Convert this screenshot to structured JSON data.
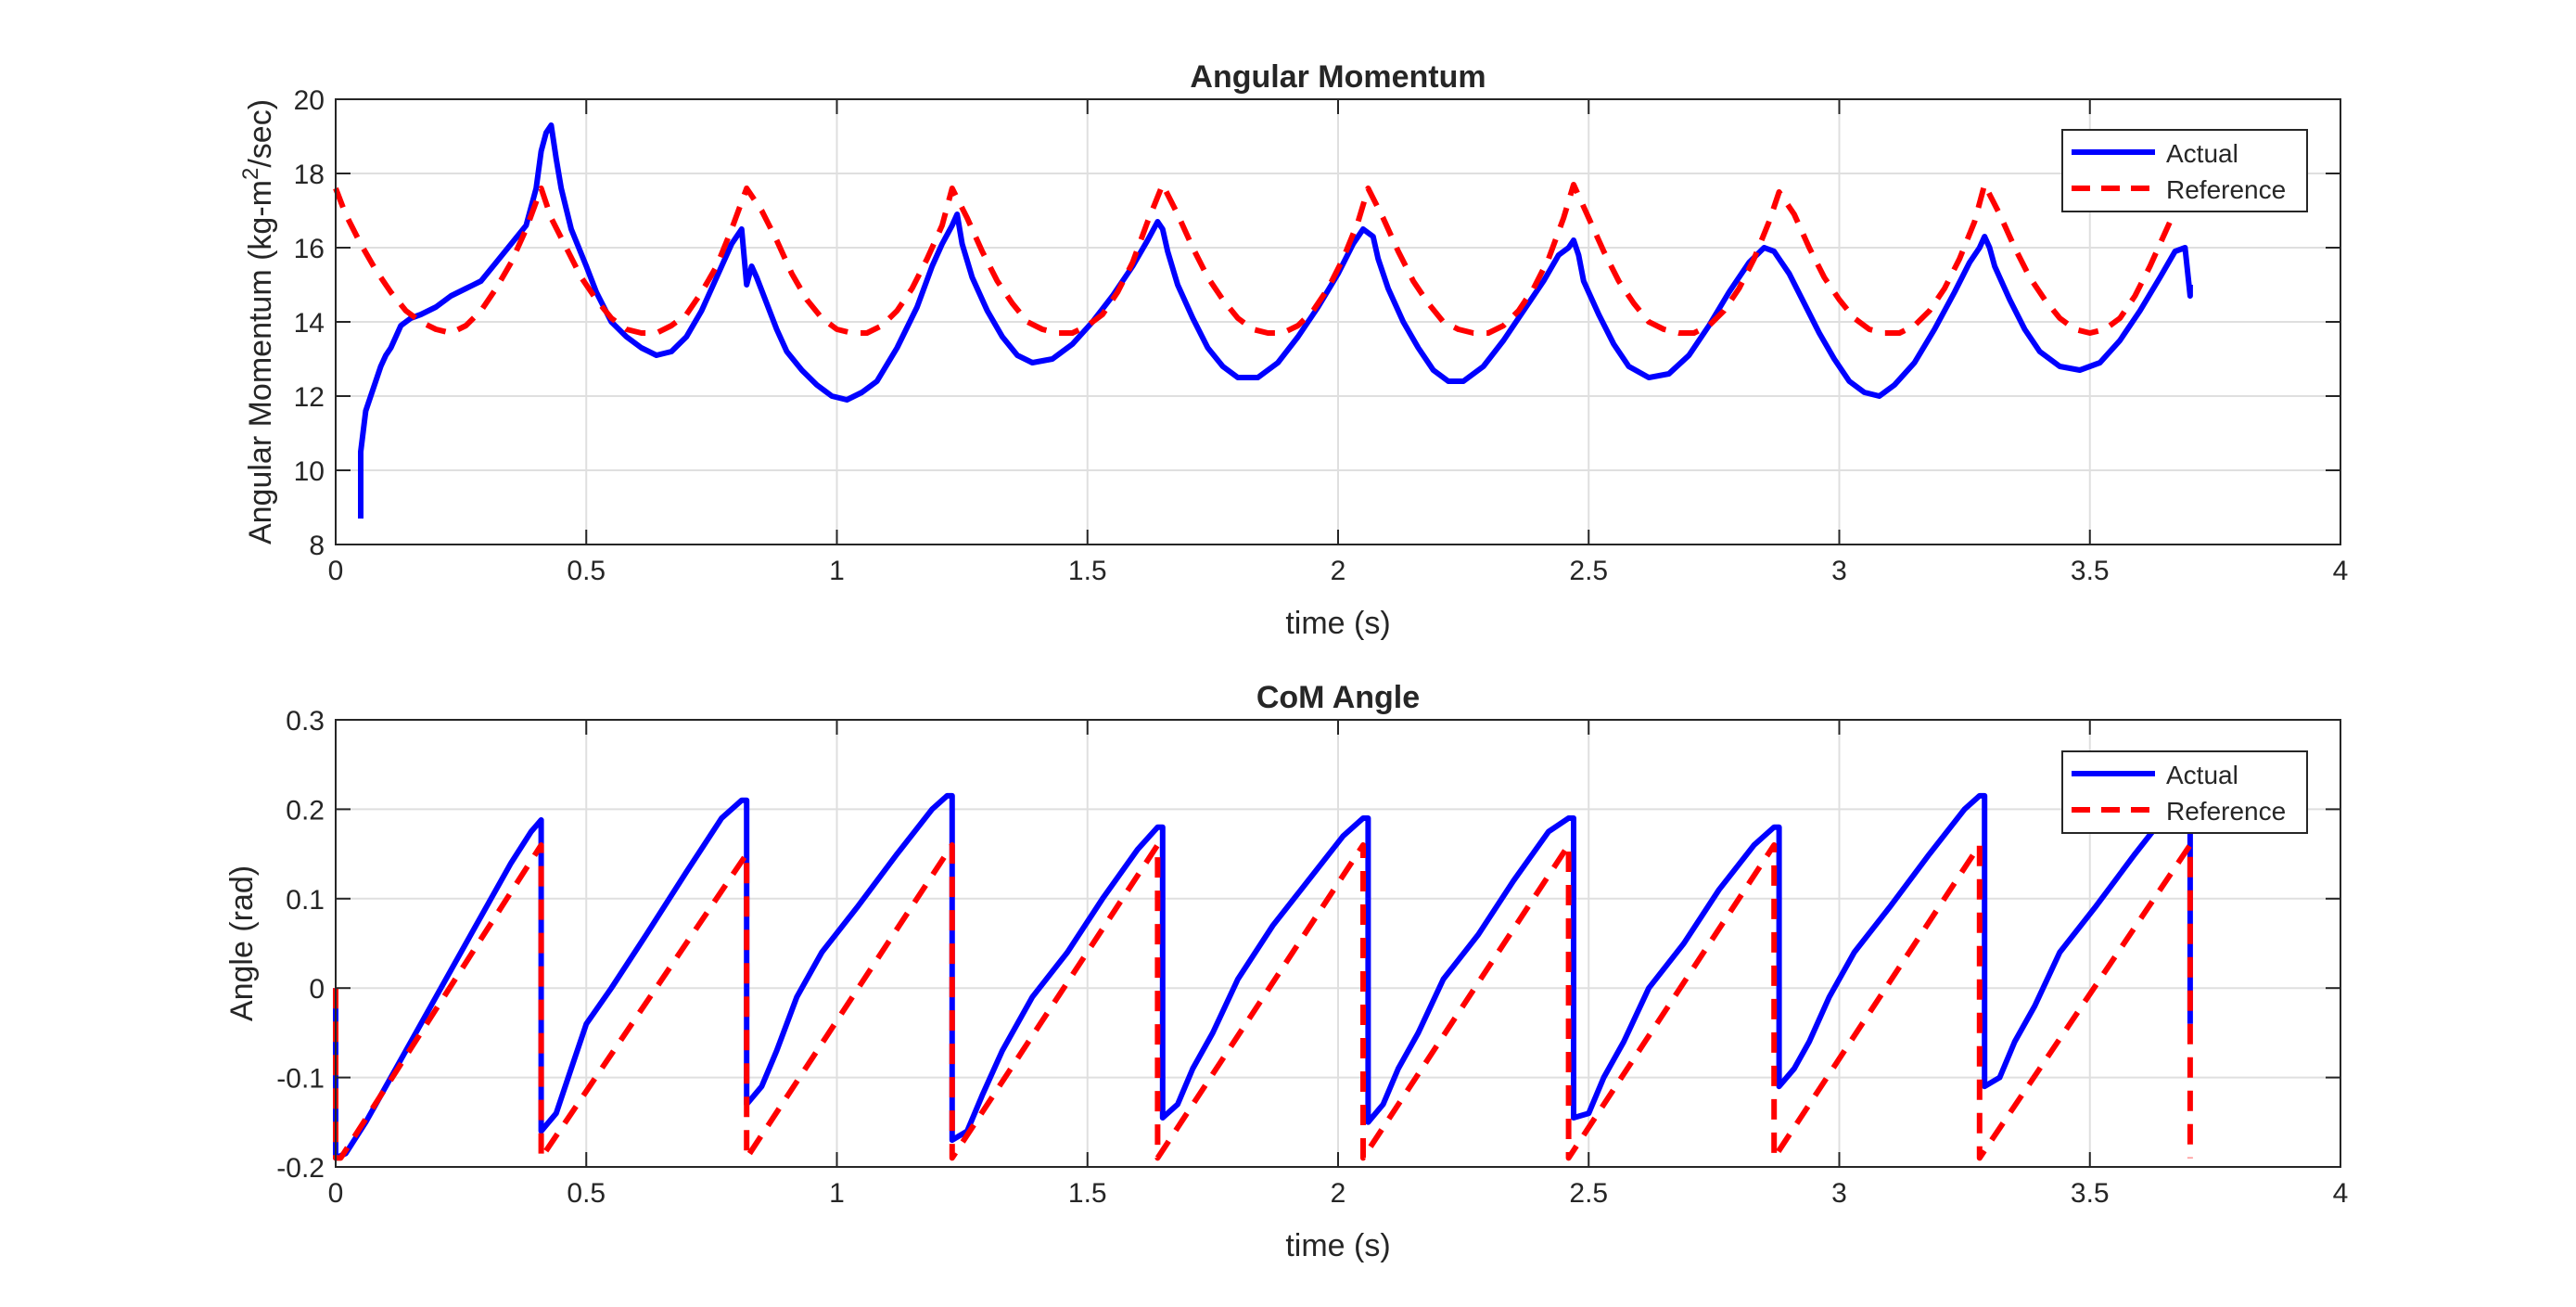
{
  "colors": {
    "actual": "#0000ff",
    "reference": "#ff0000",
    "axes": "#262626",
    "grid": "#dfdfdf",
    "background": "#ffffff"
  },
  "chart_data": [
    {
      "type": "line",
      "title": "Angular Momentum",
      "xlabel": "time (s)",
      "ylabel_parts": {
        "prefix": "Angular Momentum (kg-m",
        "sup": "2",
        "suffix": "/sec)"
      },
      "xlim": [
        0,
        4
      ],
      "ylim": [
        8,
        20
      ],
      "xticks": [
        0,
        0.5,
        1,
        1.5,
        2,
        2.5,
        3,
        3.5,
        4
      ],
      "xtick_labels": [
        "0",
        "0.5",
        "1",
        "1.5",
        "2",
        "2.5",
        "3",
        "3.5",
        "4"
      ],
      "yticks": [
        8,
        10,
        12,
        14,
        16,
        18,
        20
      ],
      "ytick_labels": [
        "8",
        "10",
        "12",
        "14",
        "16",
        "18",
        "20"
      ],
      "grid": true,
      "legend_position": "top-right",
      "legend": [
        "Actual",
        "Reference"
      ],
      "series": [
        {
          "name": "Actual",
          "style": "solid",
          "x": [
            0.05,
            0.05,
            0.06,
            0.07,
            0.08,
            0.09,
            0.1,
            0.11,
            0.12,
            0.13,
            0.15,
            0.17,
            0.2,
            0.23,
            0.26,
            0.29,
            0.32,
            0.35,
            0.38,
            0.4,
            0.41,
            0.42,
            0.43,
            0.44,
            0.45,
            0.47,
            0.5,
            0.52,
            0.55,
            0.58,
            0.61,
            0.64,
            0.67,
            0.7,
            0.73,
            0.76,
            0.79,
            0.81,
            0.82,
            0.83,
            0.84,
            0.86,
            0.88,
            0.9,
            0.93,
            0.96,
            0.99,
            1.02,
            1.05,
            1.08,
            1.12,
            1.16,
            1.19,
            1.21,
            1.23,
            1.24,
            1.25,
            1.27,
            1.3,
            1.33,
            1.36,
            1.39,
            1.43,
            1.47,
            1.51,
            1.55,
            1.59,
            1.62,
            1.64,
            1.65,
            1.66,
            1.68,
            1.71,
            1.74,
            1.77,
            1.8,
            1.84,
            1.88,
            1.92,
            1.96,
            2.0,
            2.03,
            2.05,
            2.07,
            2.08,
            2.1,
            2.13,
            2.16,
            2.19,
            2.22,
            2.25,
            2.29,
            2.33,
            2.37,
            2.41,
            2.44,
            2.46,
            2.47,
            2.48,
            2.49,
            2.52,
            2.55,
            2.58,
            2.62,
            2.66,
            2.7,
            2.74,
            2.78,
            2.82,
            2.85,
            2.87,
            2.88,
            2.9,
            2.93,
            2.96,
            2.99,
            3.02,
            3.05,
            3.08,
            3.11,
            3.15,
            3.19,
            3.23,
            3.26,
            3.28,
            3.29,
            3.3,
            3.31,
            3.34,
            3.37,
            3.4,
            3.44,
            3.48,
            3.52,
            3.56,
            3.6,
            3.64,
            3.67,
            3.69,
            3.7,
            3.7
          ],
          "y": [
            8.7,
            10.5,
            11.6,
            12.0,
            12.4,
            12.8,
            13.1,
            13.3,
            13.6,
            13.9,
            14.1,
            14.2,
            14.4,
            14.7,
            14.9,
            15.1,
            15.6,
            16.1,
            16.6,
            17.6,
            18.6,
            19.1,
            19.3,
            18.4,
            17.6,
            16.5,
            15.5,
            14.8,
            14.0,
            13.6,
            13.3,
            13.1,
            13.2,
            13.6,
            14.3,
            15.2,
            16.1,
            16.5,
            15.0,
            15.5,
            15.2,
            14.5,
            13.8,
            13.2,
            12.7,
            12.3,
            12.0,
            11.9,
            12.1,
            12.4,
            13.3,
            14.4,
            15.5,
            16.1,
            16.6,
            16.9,
            16.1,
            15.2,
            14.3,
            13.6,
            13.1,
            12.9,
            13.0,
            13.4,
            14.0,
            14.7,
            15.5,
            16.2,
            16.7,
            16.5,
            15.9,
            15.0,
            14.1,
            13.3,
            12.8,
            12.5,
            12.5,
            12.9,
            13.6,
            14.4,
            15.3,
            16.1,
            16.5,
            16.3,
            15.7,
            14.9,
            14.0,
            13.3,
            12.7,
            12.4,
            12.4,
            12.8,
            13.5,
            14.3,
            15.1,
            15.8,
            16.0,
            16.2,
            15.8,
            15.1,
            14.2,
            13.4,
            12.8,
            12.5,
            12.6,
            13.1,
            13.9,
            14.8,
            15.6,
            16.0,
            15.9,
            15.7,
            15.3,
            14.5,
            13.7,
            13.0,
            12.4,
            12.1,
            12.0,
            12.3,
            12.9,
            13.8,
            14.8,
            15.6,
            16.0,
            16.3,
            16.0,
            15.5,
            14.6,
            13.8,
            13.2,
            12.8,
            12.7,
            12.9,
            13.5,
            14.3,
            15.2,
            15.9,
            16.0,
            14.7,
            15.0
          ]
        },
        {
          "name": "Reference",
          "style": "dashed",
          "x": [
            0.0,
            0.02,
            0.05,
            0.08,
            0.11,
            0.14,
            0.17,
            0.2,
            0.23,
            0.26,
            0.29,
            0.32,
            0.35,
            0.38,
            0.41,
            0.43,
            0.46,
            0.49,
            0.52,
            0.55,
            0.58,
            0.61,
            0.64,
            0.67,
            0.7,
            0.73,
            0.76,
            0.79,
            0.82,
            0.85,
            0.88,
            0.91,
            0.94,
            0.97,
            1.0,
            1.03,
            1.06,
            1.09,
            1.12,
            1.15,
            1.18,
            1.21,
            1.23,
            1.26,
            1.29,
            1.32,
            1.35,
            1.38,
            1.41,
            1.44,
            1.47,
            1.5,
            1.53,
            1.56,
            1.59,
            1.62,
            1.65,
            1.68,
            1.71,
            1.74,
            1.77,
            1.8,
            1.83,
            1.86,
            1.89,
            1.92,
            1.95,
            1.98,
            2.01,
            2.04,
            2.06,
            2.09,
            2.12,
            2.15,
            2.18,
            2.21,
            2.24,
            2.27,
            2.3,
            2.33,
            2.36,
            2.39,
            2.42,
            2.45,
            2.47,
            2.5,
            2.53,
            2.56,
            2.59,
            2.62,
            2.65,
            2.68,
            2.71,
            2.74,
            2.77,
            2.8,
            2.83,
            2.86,
            2.88,
            2.91,
            2.94,
            2.97,
            3.0,
            3.03,
            3.06,
            3.09,
            3.12,
            3.15,
            3.18,
            3.21,
            3.24,
            3.27,
            3.29,
            3.32,
            3.35,
            3.38,
            3.41,
            3.44,
            3.47,
            3.5,
            3.53,
            3.56,
            3.59,
            3.62,
            3.65,
            3.68,
            3.71
          ],
          "y": [
            17.6,
            16.9,
            16.1,
            15.4,
            14.8,
            14.3,
            14.0,
            13.8,
            13.7,
            13.9,
            14.3,
            14.9,
            15.6,
            16.5,
            17.6,
            16.8,
            16.0,
            15.2,
            14.6,
            14.1,
            13.8,
            13.7,
            13.7,
            13.9,
            14.2,
            14.8,
            15.5,
            16.5,
            17.6,
            17.0,
            16.2,
            15.3,
            14.6,
            14.1,
            13.8,
            13.7,
            13.7,
            13.9,
            14.3,
            14.9,
            15.7,
            16.6,
            17.6,
            16.8,
            15.9,
            15.1,
            14.5,
            14.0,
            13.8,
            13.7,
            13.7,
            13.9,
            14.2,
            14.8,
            15.6,
            16.7,
            17.7,
            16.9,
            16.0,
            15.2,
            14.6,
            14.1,
            13.8,
            13.7,
            13.7,
            13.9,
            14.3,
            14.9,
            15.7,
            16.7,
            17.6,
            16.8,
            15.9,
            15.1,
            14.5,
            14.0,
            13.8,
            13.7,
            13.7,
            13.9,
            14.3,
            14.9,
            15.7,
            16.8,
            17.7,
            16.8,
            15.9,
            15.1,
            14.5,
            14.0,
            13.8,
            13.7,
            13.7,
            13.9,
            14.3,
            14.9,
            15.7,
            16.7,
            17.5,
            16.9,
            16.0,
            15.2,
            14.6,
            14.1,
            13.8,
            13.7,
            13.7,
            13.9,
            14.3,
            14.9,
            15.7,
            16.7,
            17.7,
            16.9,
            16.0,
            15.2,
            14.6,
            14.1,
            13.8,
            13.7,
            13.8,
            14.1,
            14.7,
            15.5,
            16.4,
            17.3,
            17.6
          ]
        }
      ]
    },
    {
      "type": "line",
      "title": "CoM Angle",
      "xlabel": "time (s)",
      "ylabel_parts": {
        "prefix": "Angle (rad)",
        "sup": "",
        "suffix": ""
      },
      "xlim": [
        0,
        4
      ],
      "ylim": [
        -0.2,
        0.3
      ],
      "xticks": [
        0,
        0.5,
        1,
        1.5,
        2,
        2.5,
        3,
        3.5,
        4
      ],
      "xtick_labels": [
        "0",
        "0.5",
        "1",
        "1.5",
        "2",
        "2.5",
        "3",
        "3.5",
        "4"
      ],
      "yticks": [
        -0.2,
        -0.1,
        0,
        0.1,
        0.2,
        0.3
      ],
      "ytick_labels": [
        "-0.2",
        "-0.1",
        "0",
        "0.1",
        "0.2",
        "0.3"
      ],
      "grid": true,
      "legend_position": "top-right",
      "legend": [
        "Actual",
        "Reference"
      ],
      "series": [
        {
          "name": "Actual",
          "style": "solid",
          "x": [
            0.0,
            0.0,
            0.02,
            0.06,
            0.12,
            0.2,
            0.28,
            0.35,
            0.39,
            0.41,
            0.41,
            0.44,
            0.47,
            0.5,
            0.55,
            0.62,
            0.7,
            0.77,
            0.81,
            0.82,
            0.82,
            0.85,
            0.88,
            0.92,
            0.97,
            1.04,
            1.12,
            1.19,
            1.22,
            1.23,
            1.23,
            1.26,
            1.29,
            1.33,
            1.39,
            1.46,
            1.53,
            1.6,
            1.64,
            1.65,
            1.65,
            1.68,
            1.71,
            1.75,
            1.8,
            1.87,
            1.94,
            2.01,
            2.05,
            2.06,
            2.06,
            2.09,
            2.12,
            2.16,
            2.21,
            2.28,
            2.35,
            2.42,
            2.46,
            2.47,
            2.47,
            2.5,
            2.53,
            2.57,
            2.62,
            2.69,
            2.76,
            2.83,
            2.87,
            2.88,
            2.88,
            2.91,
            2.94,
            2.98,
            3.03,
            3.1,
            3.18,
            3.25,
            3.28,
            3.29,
            3.29,
            3.32,
            3.35,
            3.39,
            3.44,
            3.51,
            3.59,
            3.66,
            3.7,
            3.7
          ],
          "y": [
            0.0,
            -0.19,
            -0.185,
            -0.15,
            -0.09,
            -0.01,
            0.07,
            0.14,
            0.175,
            0.188,
            -0.16,
            -0.14,
            -0.09,
            -0.04,
            0.0,
            0.06,
            0.13,
            0.19,
            0.21,
            0.21,
            -0.13,
            -0.11,
            -0.07,
            -0.01,
            0.04,
            0.09,
            0.15,
            0.2,
            0.215,
            0.215,
            -0.17,
            -0.16,
            -0.12,
            -0.07,
            -0.01,
            0.04,
            0.1,
            0.155,
            0.18,
            0.18,
            -0.145,
            -0.13,
            -0.09,
            -0.05,
            0.01,
            0.07,
            0.12,
            0.17,
            0.19,
            0.19,
            -0.15,
            -0.13,
            -0.09,
            -0.05,
            0.01,
            0.06,
            0.12,
            0.175,
            0.19,
            0.19,
            -0.145,
            -0.14,
            -0.1,
            -0.06,
            0.0,
            0.05,
            0.11,
            0.16,
            0.18,
            0.18,
            -0.11,
            -0.09,
            -0.06,
            -0.01,
            0.04,
            0.09,
            0.15,
            0.2,
            0.215,
            0.215,
            -0.11,
            -0.1,
            -0.06,
            -0.02,
            0.04,
            0.09,
            0.15,
            0.2,
            0.19,
            -0.04
          ]
        },
        {
          "name": "Reference",
          "style": "dashed",
          "x": [
            0.0,
            0.0,
            0.01,
            0.41,
            0.41,
            0.41,
            0.82,
            0.82,
            0.82,
            1.23,
            1.23,
            1.23,
            1.64,
            1.64,
            1.64,
            2.05,
            2.05,
            2.05,
            2.46,
            2.46,
            2.46,
            2.87,
            2.87,
            2.87,
            3.28,
            3.28,
            3.28,
            3.7,
            3.7
          ],
          "y": [
            0.0,
            -0.19,
            -0.19,
            0.16,
            -0.16,
            -0.19,
            0.15,
            -0.18,
            -0.19,
            0.16,
            -0.16,
            -0.19,
            0.16,
            -0.14,
            -0.19,
            0.16,
            -0.15,
            -0.19,
            0.16,
            -0.15,
            -0.19,
            0.16,
            -0.11,
            -0.19,
            0.16,
            -0.11,
            -0.19,
            0.16,
            -0.19
          ]
        }
      ]
    }
  ]
}
